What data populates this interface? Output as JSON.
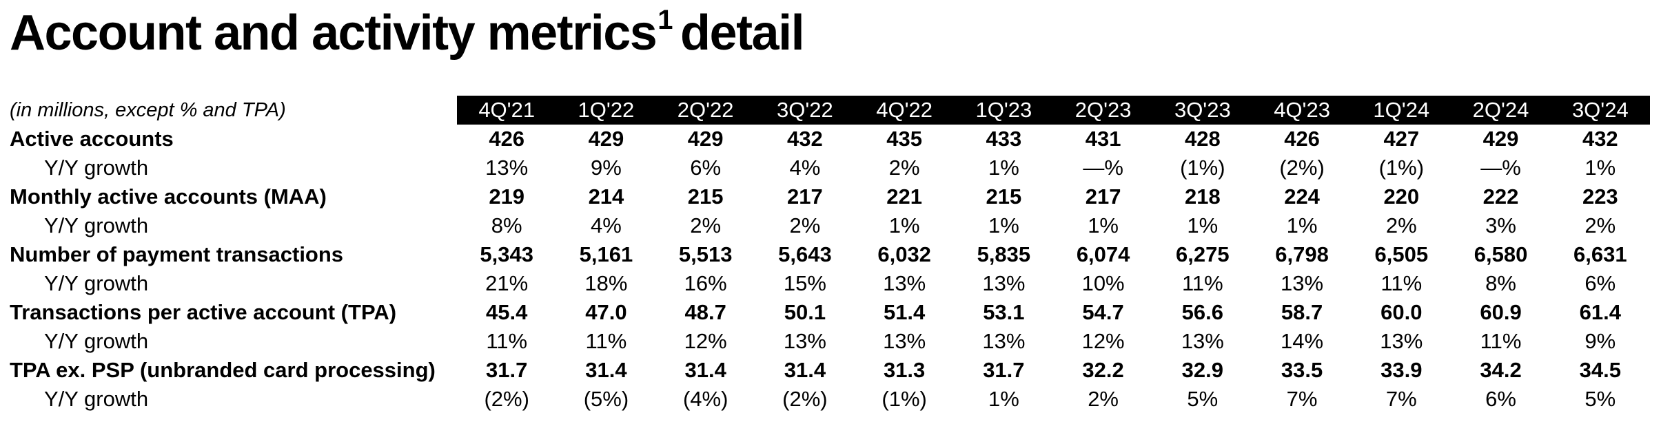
{
  "title": {
    "main": "Account and activity metrics",
    "footnote_mark": "1",
    "suffix": "detail"
  },
  "table": {
    "unit_note": "(in millions, except % and TPA)",
    "quarters": [
      "4Q'21",
      "1Q'22",
      "2Q'22",
      "3Q'22",
      "4Q'22",
      "1Q'23",
      "2Q'23",
      "3Q'23",
      "4Q'23",
      "1Q'24",
      "2Q'24",
      "3Q'24"
    ],
    "rows": [
      {
        "label": "Active accounts",
        "kind": "metric",
        "values": [
          "426",
          "429",
          "429",
          "432",
          "435",
          "433",
          "431",
          "428",
          "426",
          "427",
          "429",
          "432"
        ]
      },
      {
        "label": "Y/Y growth",
        "kind": "growth",
        "values": [
          "13%",
          "9%",
          "6%",
          "4%",
          "2%",
          "1%",
          "—%",
          "(1%)",
          "(2%)",
          "(1%)",
          "—%",
          "1%"
        ]
      },
      {
        "label": "Monthly active accounts (MAA)",
        "kind": "metric",
        "values": [
          "219",
          "214",
          "215",
          "217",
          "221",
          "215",
          "217",
          "218",
          "224",
          "220",
          "222",
          "223"
        ]
      },
      {
        "label": "Y/Y growth",
        "kind": "growth",
        "values": [
          "8%",
          "4%",
          "2%",
          "2%",
          "1%",
          "1%",
          "1%",
          "1%",
          "1%",
          "2%",
          "3%",
          "2%"
        ]
      },
      {
        "label": "Number of payment transactions",
        "kind": "metric",
        "values": [
          "5,343",
          "5,161",
          "5,513",
          "5,643",
          "6,032",
          "5,835",
          "6,074",
          "6,275",
          "6,798",
          "6,505",
          "6,580",
          "6,631"
        ]
      },
      {
        "label": "Y/Y growth",
        "kind": "growth",
        "values": [
          "21%",
          "18%",
          "16%",
          "15%",
          "13%",
          "13%",
          "10%",
          "11%",
          "13%",
          "11%",
          "8%",
          "6%"
        ]
      },
      {
        "label": "Transactions per active account (TPA)",
        "kind": "metric",
        "values": [
          "45.4",
          "47.0",
          "48.7",
          "50.1",
          "51.4",
          "53.1",
          "54.7",
          "56.6",
          "58.7",
          "60.0",
          "60.9",
          "61.4"
        ]
      },
      {
        "label": "Y/Y growth",
        "kind": "growth",
        "values": [
          "11%",
          "11%",
          "12%",
          "13%",
          "13%",
          "13%",
          "12%",
          "13%",
          "14%",
          "13%",
          "11%",
          "9%"
        ]
      },
      {
        "label": "TPA ex. PSP (unbranded card processing)",
        "kind": "metric",
        "values": [
          "31.7",
          "31.4",
          "31.4",
          "31.4",
          "31.3",
          "31.7",
          "32.2",
          "32.9",
          "33.5",
          "33.9",
          "34.2",
          "34.5"
        ]
      },
      {
        "label": "Y/Y growth",
        "kind": "growth",
        "values": [
          "(2%)",
          "(5%)",
          "(4%)",
          "(2%)",
          "(1%)",
          "1%",
          "2%",
          "5%",
          "7%",
          "7%",
          "6%",
          "5%"
        ]
      }
    ]
  }
}
